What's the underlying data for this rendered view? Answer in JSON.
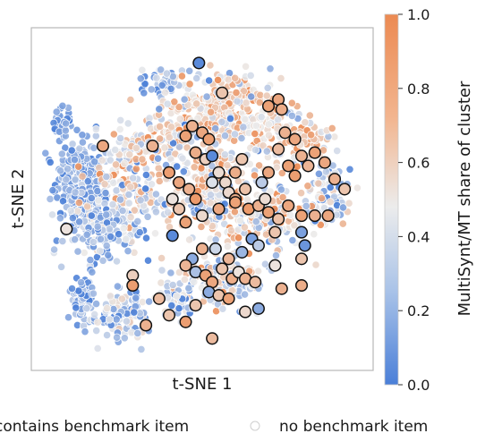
{
  "chart_data": {
    "type": "scatter",
    "xlabel": "t-SNE 1",
    "ylabel": "t-SNE 2",
    "colorbar": {
      "label": "MultiSynt/MT share of cluster",
      "range": [
        0.0,
        1.0
      ],
      "ticks": [
        "0.0",
        "0.2",
        "0.4",
        "0.6",
        "0.8",
        "1.0"
      ],
      "colormap": "coolwarm",
      "low_color": "#4a7fd8",
      "mid_color": "#ececec",
      "high_color": "#ec8a52"
    },
    "legend": {
      "placement": "bottom",
      "entries": [
        {
          "label": "contains benchmark item",
          "marker": "outlined-circle"
        },
        {
          "label": "no benchmark item",
          "marker": "faint-circle"
        }
      ]
    },
    "grid": false,
    "series": [
      {
        "label": "contains benchmark item",
        "points": [
          [
            0.49,
            0.91,
            0.05
          ],
          [
            0.7,
            0.78,
            0.88
          ],
          [
            0.73,
            0.8,
            0.85
          ],
          [
            0.74,
            0.77,
            0.82
          ],
          [
            0.56,
            0.82,
            0.7
          ],
          [
            0.45,
            0.69,
            0.88
          ],
          [
            0.47,
            0.72,
            0.8
          ],
          [
            0.5,
            0.7,
            0.85
          ],
          [
            0.52,
            0.68,
            0.9
          ],
          [
            0.48,
            0.64,
            0.82
          ],
          [
            0.51,
            0.62,
            0.65
          ],
          [
            0.53,
            0.63,
            0.05
          ],
          [
            0.55,
            0.58,
            0.58
          ],
          [
            0.53,
            0.55,
            0.45
          ],
          [
            0.57,
            0.55,
            0.6
          ],
          [
            0.6,
            0.58,
            0.82
          ],
          [
            0.62,
            0.62,
            0.7
          ],
          [
            0.63,
            0.53,
            0.72
          ],
          [
            0.68,
            0.55,
            0.35
          ],
          [
            0.7,
            0.58,
            0.85
          ],
          [
            0.73,
            0.65,
            0.75
          ],
          [
            0.75,
            0.7,
            0.8
          ],
          [
            0.78,
            0.68,
            0.85
          ],
          [
            0.8,
            0.63,
            0.8
          ],
          [
            0.82,
            0.6,
            0.78
          ],
          [
            0.76,
            0.6,
            0.88
          ],
          [
            0.78,
            0.57,
            0.9
          ],
          [
            0.84,
            0.64,
            0.88
          ],
          [
            0.87,
            0.61,
            0.85
          ],
          [
            0.9,
            0.56,
            0.8
          ],
          [
            0.93,
            0.53,
            0.7
          ],
          [
            0.4,
            0.58,
            0.9
          ],
          [
            0.43,
            0.55,
            0.85
          ],
          [
            0.46,
            0.53,
            0.8
          ],
          [
            0.48,
            0.5,
            0.92
          ],
          [
            0.41,
            0.5,
            0.55
          ],
          [
            0.43,
            0.47,
            0.7
          ],
          [
            0.45,
            0.43,
            0.88
          ],
          [
            0.5,
            0.45,
            0.6
          ],
          [
            0.55,
            0.47,
            0.85
          ],
          [
            0.58,
            0.52,
            0.6
          ],
          [
            0.6,
            0.5,
            0.82
          ],
          [
            0.64,
            0.47,
            0.92
          ],
          [
            0.67,
            0.48,
            0.8
          ],
          [
            0.69,
            0.5,
            0.58
          ],
          [
            0.7,
            0.46,
            0.88
          ],
          [
            0.73,
            0.44,
            0.72
          ],
          [
            0.76,
            0.48,
            0.85
          ],
          [
            0.8,
            0.45,
            0.88
          ],
          [
            0.84,
            0.45,
            0.8
          ],
          [
            0.88,
            0.45,
            0.85
          ],
          [
            0.72,
            0.4,
            0.7
          ],
          [
            0.65,
            0.38,
            0.15
          ],
          [
            0.67,
            0.36,
            0.35
          ],
          [
            0.62,
            0.34,
            0.25
          ],
          [
            0.58,
            0.32,
            0.78
          ],
          [
            0.54,
            0.35,
            0.4
          ],
          [
            0.5,
            0.35,
            0.8
          ],
          [
            0.47,
            0.32,
            0.2
          ],
          [
            0.45,
            0.3,
            0.78
          ],
          [
            0.48,
            0.28,
            0.3
          ],
          [
            0.51,
            0.27,
            0.88
          ],
          [
            0.53,
            0.25,
            0.85
          ],
          [
            0.56,
            0.29,
            0.7
          ],
          [
            0.59,
            0.26,
            0.82
          ],
          [
            0.61,
            0.28,
            0.55
          ],
          [
            0.63,
            0.26,
            0.8
          ],
          [
            0.66,
            0.25,
            0.75
          ],
          [
            0.52,
            0.22,
            0.2
          ],
          [
            0.55,
            0.21,
            0.7
          ],
          [
            0.58,
            0.2,
            0.88
          ],
          [
            0.48,
            0.18,
            0.7
          ],
          [
            0.45,
            0.13,
            0.9
          ],
          [
            0.53,
            0.08,
            0.75
          ],
          [
            0.63,
            0.16,
            0.6
          ],
          [
            0.67,
            0.17,
            0.2
          ],
          [
            0.74,
            0.23,
            0.8
          ],
          [
            0.8,
            0.24,
            0.82
          ],
          [
            0.72,
            0.3,
            0.55
          ],
          [
            0.8,
            0.32,
            0.7
          ],
          [
            0.81,
            0.36,
            0.1
          ],
          [
            0.8,
            0.4,
            0.15
          ],
          [
            0.2,
            0.66,
            0.85
          ],
          [
            0.29,
            0.27,
            0.65
          ],
          [
            0.29,
            0.24,
            0.9
          ],
          [
            0.09,
            0.41,
            0.55
          ],
          [
            0.37,
            0.2,
            0.75
          ],
          [
            0.4,
            0.15,
            0.7
          ],
          [
            0.33,
            0.12,
            0.8
          ],
          [
            0.41,
            0.39,
            0.05
          ],
          [
            0.35,
            0.66,
            0.8
          ],
          [
            0.6,
            0.49,
            0.88
          ]
        ]
      },
      {
        "label": "no benchmark item",
        "generation": "dense background of clusters; values approximate the visible color mix",
        "clusters": [
          [
            0.08,
            0.73,
            0.025,
            0.05,
            45,
            0.1,
            0.08
          ],
          [
            0.13,
            0.55,
            0.06,
            0.1,
            260,
            0.15,
            0.1
          ],
          [
            0.27,
            0.53,
            0.1,
            0.1,
            160,
            0.5,
            0.25
          ],
          [
            0.2,
            0.4,
            0.1,
            0.09,
            140,
            0.25,
            0.18
          ],
          [
            0.14,
            0.2,
            0.04,
            0.06,
            70,
            0.2,
            0.12
          ],
          [
            0.27,
            0.15,
            0.07,
            0.07,
            110,
            0.35,
            0.2
          ],
          [
            0.38,
            0.85,
            0.05,
            0.04,
            50,
            0.3,
            0.2
          ],
          [
            0.42,
            0.7,
            0.06,
            0.07,
            90,
            0.6,
            0.25
          ],
          [
            0.55,
            0.78,
            0.09,
            0.08,
            180,
            0.7,
            0.2
          ],
          [
            0.7,
            0.72,
            0.1,
            0.1,
            130,
            0.62,
            0.22
          ],
          [
            0.88,
            0.52,
            0.06,
            0.08,
            90,
            0.35,
            0.22
          ],
          [
            0.53,
            0.52,
            0.08,
            0.1,
            180,
            0.6,
            0.25
          ],
          [
            0.7,
            0.45,
            0.1,
            0.08,
            160,
            0.55,
            0.25
          ],
          [
            0.58,
            0.26,
            0.09,
            0.08,
            150,
            0.48,
            0.28
          ],
          [
            0.44,
            0.2,
            0.05,
            0.06,
            70,
            0.35,
            0.22
          ],
          [
            0.5,
            0.62,
            0.18,
            0.22,
            170,
            0.45,
            0.28
          ],
          [
            0.83,
            0.68,
            0.05,
            0.05,
            40,
            0.7,
            0.15
          ],
          [
            0.3,
            0.65,
            0.06,
            0.05,
            50,
            0.55,
            0.22
          ]
        ]
      }
    ]
  }
}
